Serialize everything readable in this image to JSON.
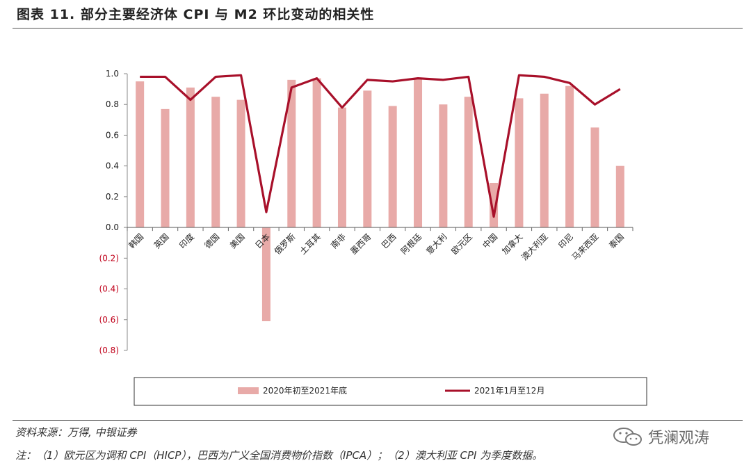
{
  "title": "图表 11. 部分主要经济体 CPI 与 M2 环比变动的相关性",
  "source": "资料来源：万得, 中银证券",
  "note": "注：（1）欧元区为调和 CPI（HICP），巴西为广义全国消费物价指数（IPCA）；（2）澳大利亚 CPI 为季度数据。",
  "watermark": "凭澜观涛",
  "colors": {
    "bar": "#e8aaa8",
    "line": "#a8102a",
    "negative_tick": "#c0001a"
  },
  "chart_data": {
    "type": "bar",
    "categories": [
      "韩国",
      "英国",
      "印度",
      "德国",
      "美国",
      "日本",
      "俄罗斯",
      "土耳其",
      "南非",
      "墨西哥",
      "巴西",
      "阿根廷",
      "意大利",
      "欧元区",
      "中国",
      "加拿大",
      "澳大利亚",
      "印尼",
      "马来西亚",
      "泰国"
    ],
    "yticks": [
      "1.0",
      "0.8",
      "0.6",
      "0.4",
      "0.2",
      "0.0",
      "(0.2)",
      "(0.4)",
      "(0.6)",
      "(0.8)"
    ],
    "ylim": [
      -0.8,
      1.0
    ],
    "series": [
      {
        "name": "2020年初至2021年底",
        "type": "bar",
        "values": [
          0.95,
          0.77,
          0.91,
          0.85,
          0.83,
          -0.61,
          0.96,
          0.97,
          0.78,
          0.89,
          0.79,
          0.97,
          0.8,
          0.85,
          0.29,
          0.84,
          0.87,
          0.92,
          0.65,
          0.4
        ]
      },
      {
        "name": "2021年1月至12月",
        "type": "line",
        "values": [
          0.98,
          0.98,
          0.83,
          0.98,
          0.99,
          0.1,
          0.91,
          0.97,
          0.78,
          0.96,
          0.95,
          0.97,
          0.96,
          0.98,
          0.07,
          0.99,
          0.98,
          0.94,
          0.8,
          0.9
        ]
      }
    ],
    "legend_position": "bottom",
    "grid": false
  }
}
